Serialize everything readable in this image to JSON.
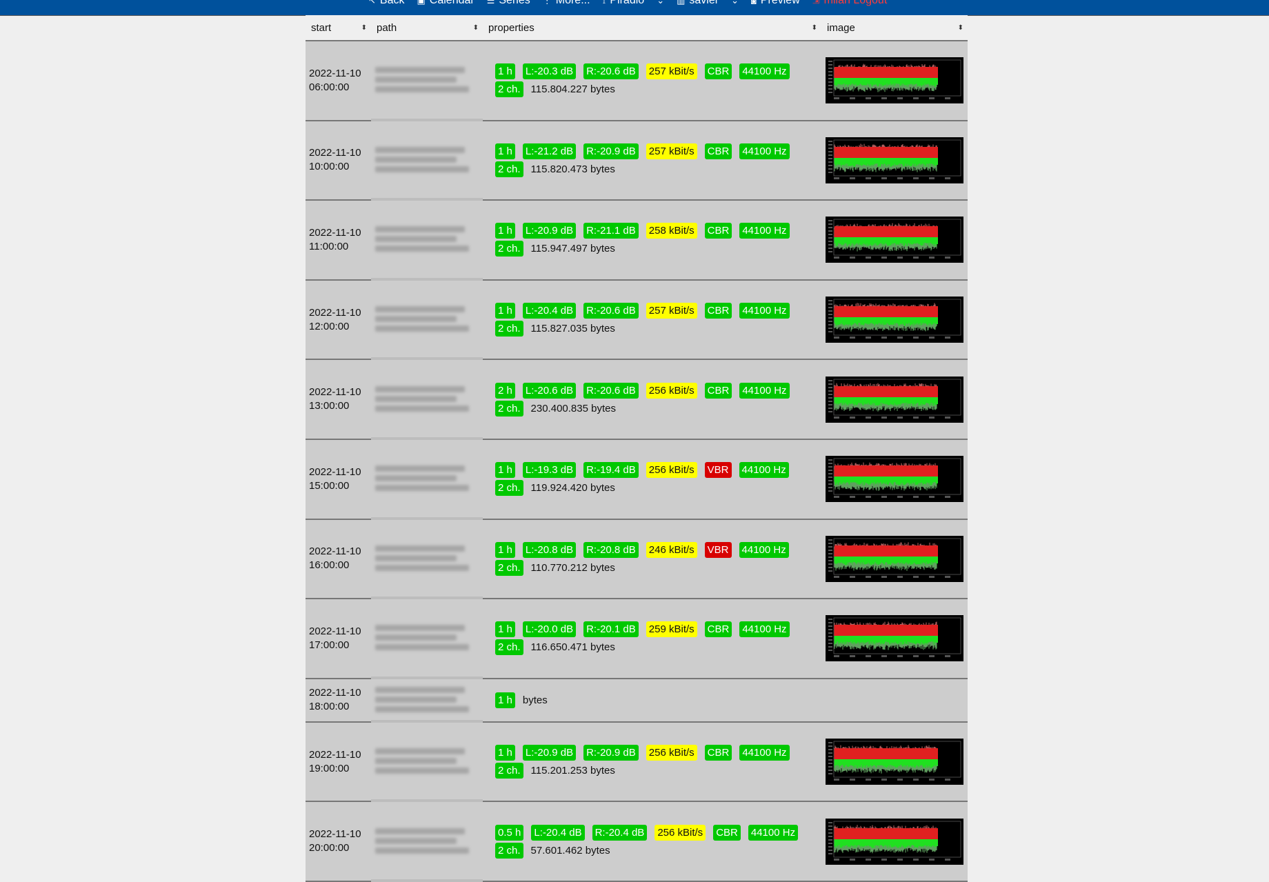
{
  "nav": {
    "items": [
      {
        "icon": "back-arrow-icon",
        "glyph": "↖",
        "label": "Back"
      },
      {
        "icon": "calendar-icon",
        "glyph": "▣",
        "label": "Calendar"
      },
      {
        "icon": "list-icon",
        "glyph": "☰",
        "label": "Series"
      },
      {
        "icon": "more-vertical-icon",
        "glyph": "⋮",
        "label": "More..."
      },
      {
        "icon": "antenna-icon",
        "glyph": "⟟",
        "label": "Piradio"
      },
      {
        "icon": "chevron-down-icon",
        "glyph": "⌄",
        "label": ""
      },
      {
        "icon": "building-icon",
        "glyph": "▥",
        "label": "savier"
      },
      {
        "icon": "chevron-down-icon",
        "glyph": "⌄",
        "label": ""
      },
      {
        "icon": "preview-icon",
        "glyph": "◙",
        "label": "Preview"
      },
      {
        "icon": "logout-icon",
        "glyph": "⇲",
        "label": "milan Logout"
      }
    ]
  },
  "columns": [
    "start",
    "path",
    "properties",
    "image"
  ],
  "colors": {
    "green": "#00c800",
    "yellow": "#ffff00",
    "red": "#d80000",
    "nav": "#00519c"
  },
  "rows": [
    {
      "date": "2022-11-10",
      "time": "06:00:00",
      "duration": "1 h",
      "left": "L:-20.3 dB",
      "right": "R:-20.6 dB",
      "bitrate": "257 kBit/s",
      "mode": "CBR",
      "rate": "44100 Hz",
      "channels": "2 ch.",
      "size": "115.804.227 bytes",
      "image": true
    },
    {
      "date": "2022-11-10",
      "time": "10:00:00",
      "duration": "1 h",
      "left": "L:-21.2 dB",
      "right": "R:-20.9 dB",
      "bitrate": "257 kBit/s",
      "mode": "CBR",
      "rate": "44100 Hz",
      "channels": "2 ch.",
      "size": "115.820.473 bytes",
      "image": true
    },
    {
      "date": "2022-11-10",
      "time": "11:00:00",
      "duration": "1 h",
      "left": "L:-20.9 dB",
      "right": "R:-21.1 dB",
      "bitrate": "258 kBit/s",
      "mode": "CBR",
      "rate": "44100 Hz",
      "channels": "2 ch.",
      "size": "115.947.497 bytes",
      "image": true
    },
    {
      "date": "2022-11-10",
      "time": "12:00:00",
      "duration": "1 h",
      "left": "L:-20.4 dB",
      "right": "R:-20.6 dB",
      "bitrate": "257 kBit/s",
      "mode": "CBR",
      "rate": "44100 Hz",
      "channels": "2 ch.",
      "size": "115.827.035 bytes",
      "image": true
    },
    {
      "date": "2022-11-10",
      "time": "13:00:00",
      "duration": "2 h",
      "left": "L:-20.6 dB",
      "right": "R:-20.6 dB",
      "bitrate": "256 kBit/s",
      "mode": "CBR",
      "rate": "44100 Hz",
      "channels": "2 ch.",
      "size": "230.400.835 bytes",
      "image": true
    },
    {
      "date": "2022-11-10",
      "time": "15:00:00",
      "duration": "1 h",
      "left": "L:-19.3 dB",
      "right": "R:-19.4 dB",
      "bitrate": "256 kBit/s",
      "mode": "VBR",
      "rate": "44100 Hz",
      "channels": "2 ch.",
      "size": "119.924.420 bytes",
      "image": true
    },
    {
      "date": "2022-11-10",
      "time": "16:00:00",
      "duration": "1 h",
      "left": "L:-20.8 dB",
      "right": "R:-20.8 dB",
      "bitrate": "246 kBit/s",
      "mode": "VBR",
      "rate": "44100 Hz",
      "channels": "2 ch.",
      "size": "110.770.212 bytes",
      "image": true
    },
    {
      "date": "2022-11-10",
      "time": "17:00:00",
      "duration": "1 h",
      "left": "L:-20.0 dB",
      "right": "R:-20.1 dB",
      "bitrate": "259 kBit/s",
      "mode": "CBR",
      "rate": "44100 Hz",
      "channels": "2 ch.",
      "size": "116.650.471 bytes",
      "image": true
    },
    {
      "date": "2022-11-10",
      "time": "18:00:00",
      "duration": "1 h",
      "size": "bytes",
      "image": false
    },
    {
      "date": "2022-11-10",
      "time": "19:00:00",
      "duration": "1 h",
      "left": "L:-20.9 dB",
      "right": "R:-20.9 dB",
      "bitrate": "256 kBit/s",
      "mode": "CBR",
      "rate": "44100 Hz",
      "channels": "2 ch.",
      "size": "115.201.253 bytes",
      "image": true
    },
    {
      "date": "2022-11-10",
      "time": "20:00:00",
      "duration": "0.5 h",
      "left": "L:-20.4 dB",
      "right": "R:-20.4 dB",
      "bitrate": "256 kBit/s",
      "mode": "CBR",
      "rate": "44100 Hz",
      "channels": "2 ch.",
      "size": "57.601.462 bytes",
      "image": true
    }
  ]
}
